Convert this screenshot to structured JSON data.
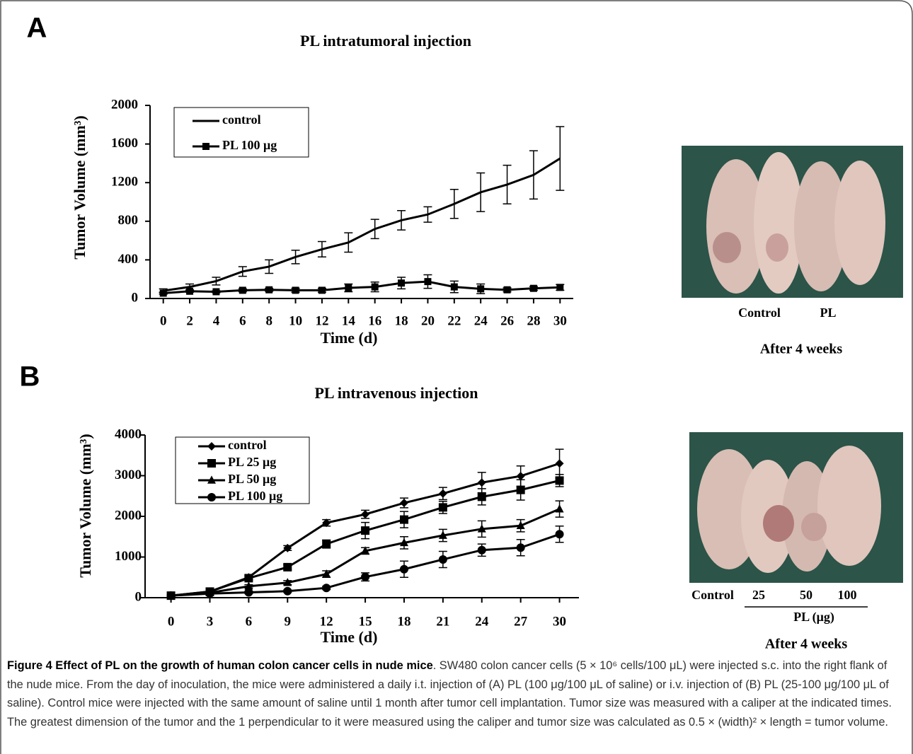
{
  "panels": [
    {
      "label": "A",
      "photo_labels": [
        "Control",
        "PL"
      ],
      "photo_caption": "After 4 weeks"
    },
    {
      "label": "B",
      "photo_labels": [
        "Control",
        "25",
        "50",
        "100"
      ],
      "photo_group_label": "PL (μg)",
      "photo_caption": "After 4 weeks"
    }
  ],
  "chart_data": [
    {
      "type": "line",
      "title": "PL intratumoral injection",
      "x_label": "Time (d)",
      "y_label": "Tumor Volume (mm³)",
      "x": [
        0,
        2,
        4,
        6,
        8,
        10,
        12,
        14,
        16,
        18,
        20,
        22,
        24,
        26,
        28,
        30
      ],
      "xlim": [
        -1,
        31
      ],
      "xticks": [
        0,
        2,
        4,
        6,
        8,
        10,
        12,
        14,
        16,
        18,
        20,
        22,
        24,
        26,
        28,
        30
      ],
      "ylim": [
        0,
        2000
      ],
      "yticks": [
        0,
        400,
        800,
        1200,
        1600,
        2000
      ],
      "legend": "upper left",
      "series": [
        {
          "name": "control",
          "color": "#000000",
          "marker": "none",
          "values": [
            80,
            120,
            180,
            280,
            330,
            430,
            510,
            580,
            720,
            810,
            870,
            980,
            1100,
            1180,
            1280,
            1450
          ],
          "errors": [
            20,
            30,
            40,
            50,
            70,
            70,
            80,
            100,
            100,
            100,
            80,
            150,
            200,
            200,
            250,
            330
          ]
        },
        {
          "name": "PL 100 μg",
          "color": "#000000",
          "marker": "square",
          "values": [
            55,
            75,
            70,
            85,
            90,
            85,
            85,
            110,
            120,
            160,
            175,
            120,
            100,
            90,
            105,
            115
          ],
          "errors": [
            10,
            10,
            10,
            15,
            15,
            20,
            20,
            40,
            50,
            60,
            70,
            60,
            50,
            20,
            20,
            30
          ]
        }
      ]
    },
    {
      "type": "line",
      "title": "PL intravenous injection",
      "x_label": "Time (d)",
      "y_label": "Tumor Volume (mm³)",
      "x": [
        0,
        3,
        6,
        9,
        12,
        15,
        18,
        21,
        24,
        27,
        30
      ],
      "xlim": [
        -2,
        31.5
      ],
      "xticks": [
        0,
        3,
        6,
        9,
        12,
        15,
        18,
        21,
        24,
        27,
        30
      ],
      "ylim": [
        0,
        4000
      ],
      "yticks": [
        0,
        1000,
        2000,
        3000,
        4000
      ],
      "legend": "upper left",
      "series": [
        {
          "name": "control",
          "color": "#000000",
          "marker": "diamond",
          "values": [
            50,
            150,
            500,
            1220,
            1840,
            2050,
            2330,
            2560,
            2830,
            2990,
            3300
          ],
          "errors": [
            20,
            30,
            50,
            60,
            80,
            100,
            120,
            150,
            250,
            250,
            350
          ]
        },
        {
          "name": "PL 25 μg",
          "color": "#000000",
          "marker": "square",
          "values": [
            50,
            150,
            480,
            750,
            1320,
            1650,
            1920,
            2220,
            2480,
            2650,
            2880
          ],
          "errors": [
            20,
            30,
            50,
            60,
            100,
            200,
            200,
            150,
            200,
            250,
            150
          ]
        },
        {
          "name": "PL 50 μg",
          "color": "#000000",
          "marker": "triangle",
          "values": [
            50,
            120,
            280,
            370,
            580,
            1150,
            1350,
            1530,
            1690,
            1770,
            2180
          ],
          "errors": [
            20,
            20,
            40,
            50,
            80,
            80,
            150,
            150,
            200,
            150,
            200
          ]
        },
        {
          "name": "PL 100 μg",
          "color": "#000000",
          "marker": "circle",
          "values": [
            50,
            100,
            130,
            160,
            240,
            510,
            700,
            940,
            1170,
            1230,
            1560
          ],
          "errors": [
            20,
            20,
            30,
            30,
            40,
            100,
            200,
            200,
            150,
            200,
            200
          ]
        }
      ]
    }
  ],
  "caption": {
    "title": "Figure 4 Effect of PL on the growth of human colon cancer cells in nude mice",
    "text": ". SW480 colon cancer cells (5 × 10⁶ cells/100 μL) were injected s.c. into the right flank of the nude mice. From the day of inoculation, the mice were administered a daily i.t. injection of (A) PL (100 μg/100 μL of saline) or i.v. injection of (B) PL (25-100 μg/100 μL of saline). Control mice were injected with the same amount of saline until 1 month after tumor cell implantation. Tumor size was measured with a caliper at the indicated times. The greatest dimension of the tumor and the 1 perpendicular to it were measured using the caliper and tumor size was calculated as 0.5 × (width)² × length = tumor volume."
  }
}
